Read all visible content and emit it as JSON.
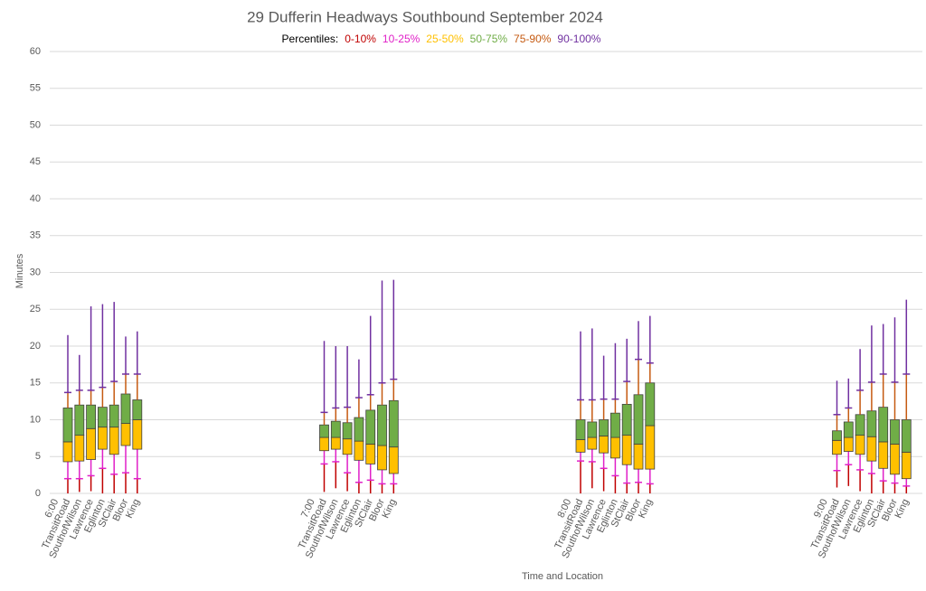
{
  "chart_data": {
    "type": "percentile-box",
    "title": "29 Dufferin Headways Southbound September 2024",
    "legend_title": "Percentiles:",
    "series": [
      {
        "name": "0-10%",
        "color": "#c00000"
      },
      {
        "name": "10-25%",
        "color": "#e020c8"
      },
      {
        "name": "25-50%",
        "color": "#ffc000"
      },
      {
        "name": "50-75%",
        "color": "#70ad47"
      },
      {
        "name": "75-90%",
        "color": "#c55a11"
      },
      {
        "name": "90-100%",
        "color": "#7030a0"
      }
    ],
    "groups": [
      {
        "label": "6:00",
        "categories": [
          "TransitRoad",
          "SouthofWilson",
          "Lawrence",
          "Eglinton",
          "StClair",
          "Bloor",
          "King"
        ],
        "min": [
          0,
          0.2,
          0.3,
          0,
          0,
          0,
          0
        ],
        "p10": [
          2,
          2,
          2.4,
          3.4,
          2.6,
          2.8,
          2
        ],
        "p25": [
          4.3,
          4.4,
          4.6,
          6,
          5.3,
          6.5,
          6
        ],
        "p50": [
          7,
          7.9,
          8.8,
          9,
          9,
          9.5,
          10
        ],
        "p75": [
          11.6,
          12,
          12,
          11.7,
          12,
          13.5,
          12.7
        ],
        "p90": [
          13.7,
          14,
          14,
          14.4,
          15.2,
          16.2,
          16.2
        ],
        "max": [
          21.5,
          18.8,
          25.4,
          25.7,
          26,
          21.3,
          22
        ]
      },
      {
        "label": "7:00",
        "categories": [
          "TransitRoad",
          "SouthofWilson",
          "Lawrence",
          "Eglinton",
          "StClair",
          "Bloor",
          "King"
        ],
        "min": [
          0.2,
          0.7,
          0.3,
          0,
          0,
          0,
          0
        ],
        "p10": [
          4,
          4.3,
          2.8,
          1.5,
          1.8,
          1.3,
          1.3
        ],
        "p25": [
          5.8,
          6,
          5.3,
          4.5,
          4,
          3.2,
          2.7
        ],
        "p50": [
          7.6,
          7.6,
          7.4,
          7.1,
          6.7,
          6.5,
          6.3
        ],
        "p75": [
          9.3,
          9.8,
          9.6,
          10.3,
          11.3,
          12,
          12.6
        ],
        "p90": [
          11,
          11.6,
          11.7,
          13,
          13.4,
          15,
          15.5
        ],
        "max": [
          20.7,
          20,
          20,
          18.2,
          24.1,
          28.9,
          29
        ]
      },
      {
        "label": "8:00",
        "categories": [
          "TransitRoad",
          "SouthofWilson",
          "Lawrence",
          "Eglinton",
          "StClair",
          "Bloor",
          "King"
        ],
        "min": [
          0,
          0.7,
          0.3,
          0,
          0,
          0,
          0
        ],
        "p10": [
          4.4,
          4.3,
          3.4,
          2.4,
          1.4,
          1.5,
          1.3
        ],
        "p25": [
          5.6,
          6,
          5.5,
          4.8,
          3.9,
          3.3,
          3.3
        ],
        "p50": [
          7.3,
          7.6,
          7.8,
          7.6,
          7.9,
          6.7,
          9.2
        ],
        "p75": [
          10,
          9.7,
          10,
          10.9,
          12.1,
          13.4,
          15
        ],
        "p90": [
          12.7,
          12.7,
          12.8,
          12.8,
          15.2,
          18.2,
          17.7
        ],
        "max": [
          22,
          22.4,
          18.7,
          20.4,
          21,
          23.4,
          24.1
        ]
      },
      {
        "label": "9:00",
        "categories": [
          "TransitRoad",
          "SouthofWilson",
          "Lawrence",
          "Eglinton",
          "StClair",
          "Bloor",
          "King"
        ],
        "min": [
          0.8,
          1,
          0.3,
          0,
          0,
          0,
          0
        ],
        "p10": [
          3.1,
          3.9,
          3.2,
          2.7,
          1.7,
          1.4,
          1
        ],
        "p25": [
          5.3,
          5.7,
          5.3,
          4.4,
          3.4,
          2.6,
          2
        ],
        "p50": [
          7.2,
          7.6,
          7.9,
          7.7,
          7,
          6.7,
          5.6
        ],
        "p75": [
          8.5,
          9.7,
          10.7,
          11.2,
          11.7,
          10,
          10
        ],
        "p90": [
          10.7,
          11.6,
          14,
          15.1,
          16.2,
          15.1,
          16.2
        ],
        "max": [
          15.3,
          15.6,
          19.6,
          22.8,
          23,
          23.9,
          26.3
        ]
      }
    ],
    "ylabel": "Minutes",
    "xlabel": "Time and Location",
    "ylim": [
      0,
      60
    ],
    "yticks": [
      0,
      5,
      10,
      15,
      20,
      25,
      30,
      35,
      40,
      45,
      50,
      55,
      60
    ],
    "grid": true
  }
}
